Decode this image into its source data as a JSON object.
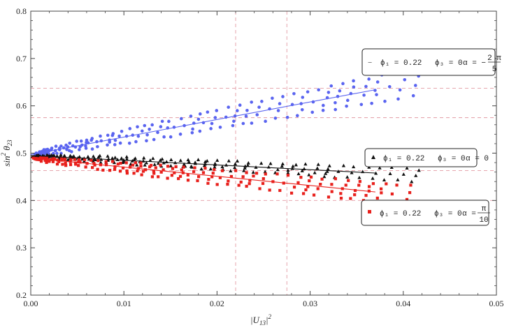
{
  "chart_data": {
    "type": "scatter",
    "xlabel": "|U13|^2",
    "ylabel": "sin^2 θ23",
    "xlim": [
      0,
      0.05
    ],
    "ylim": [
      0.2,
      0.8
    ],
    "x_ticks": [
      "0.00",
      "0.01",
      "0.02",
      "0.03",
      "0.04",
      "0.05"
    ],
    "x_tick_values": [
      0,
      0.01,
      0.02,
      0.03,
      0.04,
      0.05
    ],
    "y_ticks": [
      "0.2",
      "0.3",
      "0.4",
      "0.5",
      "0.6",
      "0.7",
      "0.8"
    ],
    "y_tick_values": [
      0.2,
      0.3,
      0.4,
      0.5,
      0.6,
      0.7,
      0.8
    ],
    "reference_lines": {
      "vertical_x": [
        0.022,
        0.0275
      ],
      "horizontal_y": [
        0.637,
        0.575,
        0.463,
        0.4
      ],
      "color": "#e39aa3"
    },
    "series": [
      {
        "color": "#5a64f0",
        "marker": "circle",
        "legend": {
          "prefix": "−",
          "phi1": "ϕ₁ = 0.22",
          "phi3": "ϕ₃ = 0",
          "alpha_text": "α = −",
          "alpha_num": "2 π",
          "alpha_den": "5"
        },
        "fit": {
          "x": [
            0,
            0.037
          ],
          "y": [
            0.497,
            0.634
          ]
        },
        "band_upper_offset": 0.028,
        "band_lower_offset": -0.027,
        "x_range": [
          0.0003,
          0.041
        ]
      },
      {
        "color": "#111111",
        "marker": "triangle",
        "legend": {
          "prefix": "▲",
          "phi1": "ϕ₁ = 0.22",
          "phi3": "ϕ₃ = 0",
          "alpha_text": "α = 0"
        },
        "fit": {
          "x": [
            0,
            0.037
          ],
          "y": [
            0.495,
            0.458
          ]
        },
        "band_upper_offset": 0.012,
        "band_lower_offset": -0.013,
        "x_range": [
          0.0003,
          0.041
        ]
      },
      {
        "color": "#e8201c",
        "marker": "square",
        "legend": {
          "prefix": "■",
          "phi1": "ϕ₁ = 0.22",
          "phi3": "ϕ₃ = 0",
          "alpha_text": "α =",
          "alpha_num": "π",
          "alpha_den": "10"
        },
        "fit": {
          "x": [
            0,
            0.037
          ],
          "y": [
            0.49,
            0.418
          ]
        },
        "band_upper_offset": 0.02,
        "band_lower_offset": -0.022,
        "x_range": [
          0.0003,
          0.04
        ]
      }
    ]
  }
}
